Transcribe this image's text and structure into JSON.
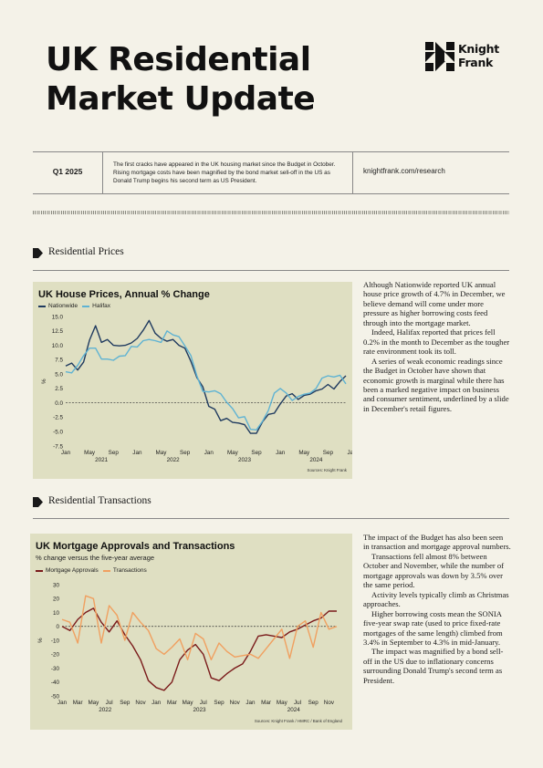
{
  "header": {
    "title_line1": "UK Residential",
    "title_line2": "Market Update",
    "logo_line1": "Knight",
    "logo_line2": "Frank"
  },
  "band": {
    "quarter": "Q1 2025",
    "intro": "The first cracks have appeared in the UK housing market since the Budget in October. Rising mortgage costs have been magnified by the bond market sell-off in the US as Donald Trump begins his second term as US President.",
    "website": "knightfrank.com/research"
  },
  "section1": {
    "heading": "Residential Prices",
    "text": [
      "Although Nationwide reported UK annual house price growth of 4.7% in December, we believe demand will come under more pressure as higher borrowing costs feed through into the mortgage market.",
      "Indeed, Halifax reported that prices fell 0.2% in the month to December as the tougher rate environment took its toll.",
      "A series of weak economic readings since the Budget in October have shown that economic growth is marginal while there has been a marked negative impact on business and consumer sentiment, underlined by a slide in December's retail figures."
    ]
  },
  "section2": {
    "heading": "Residential Transactions",
    "text": [
      "The impact of the Budget has also been seen in transaction and mortgage approval numbers.",
      "Transactions fell almost 8% between October and November, while the number of mortgage approvals was down by 3.5% over the same period.",
      "Activity levels typically climb as Christmas approaches.",
      "Higher borrowing costs mean the SONIA five-year swap rate (used to price fixed-rate mortgages of the same length) climbed from 3.4% in September to 4.3% in mid-January.",
      "The impact was magnified by a bond sell-off in the US due to inflationary concerns surrounding Donald Trump's second term as President."
    ]
  },
  "chart_data": [
    {
      "type": "line",
      "title": "UK House Prices, Annual % Change",
      "ylabel": "%",
      "ylim": [
        -7.5,
        15.0
      ],
      "yticks": [
        "15.0",
        "12.5",
        "10.0",
        "7.5",
        "5.0",
        "2.5",
        "0.0",
        "-2.5",
        "-5.0",
        "-7.5"
      ],
      "x_tick_labels": [
        "Jan",
        "May",
        "Sep",
        "Jan",
        "May",
        "Sep",
        "Jan",
        "May",
        "Sep",
        "Jan",
        "May",
        "Sep",
        "Jan"
      ],
      "x_tick_months": [
        0,
        4,
        8,
        12,
        16,
        20,
        24,
        28,
        32,
        36,
        40,
        44,
        48
      ],
      "year_labels": [
        {
          "label": "2021",
          "month": 6
        },
        {
          "label": "2022",
          "month": 18
        },
        {
          "label": "2023",
          "month": 30
        },
        {
          "label": "2024",
          "month": 42
        }
      ],
      "zero_line": "dashed",
      "legend_placement": "top-left",
      "source": "Sources: Knight Frank",
      "x_start": "Jan 2021",
      "series": [
        {
          "name": "Nationwide",
          "color": "#1f3a5f",
          "values": [
            6.4,
            6.9,
            5.7,
            7.1,
            10.9,
            13.4,
            10.5,
            11.0,
            10.0,
            9.9,
            10.0,
            10.4,
            11.2,
            12.6,
            14.3,
            12.1,
            11.2,
            10.7,
            11.0,
            10.0,
            9.5,
            7.2,
            4.4,
            2.8,
            -0.6,
            -1.1,
            -3.1,
            -2.7,
            -3.4,
            -3.5,
            -3.8,
            -5.3,
            -5.3,
            -3.3,
            -2.0,
            -1.8,
            -0.2,
            1.2,
            1.6,
            0.6,
            1.3,
            1.5,
            2.1,
            2.4,
            3.2,
            2.4,
            3.7,
            4.7
          ]
        },
        {
          "name": "Halifax",
          "color": "#5fb3d3",
          "values": [
            5.4,
            5.2,
            6.5,
            8.2,
            9.5,
            9.5,
            7.6,
            7.6,
            7.4,
            8.1,
            8.2,
            9.8,
            9.7,
            10.8,
            11.0,
            10.8,
            10.5,
            12.5,
            11.8,
            11.5,
            9.9,
            8.2,
            4.7,
            2.0,
            1.9,
            2.1,
            1.6,
            0.1,
            -1.0,
            -2.6,
            -2.4,
            -4.6,
            -4.7,
            -3.2,
            -1.3,
            1.7,
            2.5,
            1.7,
            0.4,
            1.1,
            1.5,
            1.7,
            2.5,
            4.3,
            4.7,
            4.5,
            4.8,
            3.3
          ]
        }
      ]
    },
    {
      "type": "line",
      "title": "UK Mortgage Approvals and Transactions",
      "subtitle": "% change versus the five-year average",
      "ylabel": "%",
      "ylim": [
        -50,
        30
      ],
      "yticks": [
        "30",
        "20",
        "10",
        "0",
        "-10",
        "-20",
        "-30",
        "-40",
        "-50"
      ],
      "x_tick_labels": [
        "Jan",
        "Mar",
        "May",
        "Jul",
        "Sep",
        "Nov",
        "Jan",
        "Mar",
        "May",
        "Jul",
        "Sep",
        "Nov",
        "Jan",
        "Mar",
        "May",
        "Jul",
        "Sep",
        "Nov"
      ],
      "x_tick_months": [
        0,
        2,
        4,
        6,
        8,
        10,
        12,
        14,
        16,
        18,
        20,
        22,
        24,
        26,
        28,
        30,
        32,
        34
      ],
      "year_labels": [
        {
          "label": "2022",
          "month": 5.5
        },
        {
          "label": "2023",
          "month": 17.5
        },
        {
          "label": "2024",
          "month": 29.5
        }
      ],
      "zero_line": "dashed",
      "legend_placement": "top-left",
      "source": "Sources: Knight Frank / HMRC / Bank of England",
      "x_start": "Jan 2022",
      "series": [
        {
          "name": "Mortgage Approvals",
          "color": "#7a1a1a",
          "values": [
            0,
            -3,
            5,
            10,
            13,
            3,
            -4,
            4,
            -6,
            -14,
            -24,
            -39,
            -44,
            -46,
            -40,
            -24,
            -17,
            -13,
            -20,
            -37,
            -39,
            -34,
            -30,
            -27,
            -18,
            -7,
            -6,
            -7,
            -8,
            -4,
            -2,
            1,
            4,
            6,
            11,
            11
          ]
        },
        {
          "name": "Transactions",
          "color": "#f0a060",
          "values": [
            5,
            3,
            -12,
            22,
            20,
            -12,
            15,
            8,
            -10,
            10,
            3,
            -3,
            -16,
            -20,
            -15,
            -9,
            -24,
            -5,
            -9,
            -24,
            -12,
            -18,
            -22,
            -21,
            -20,
            -23,
            -16,
            -9,
            -2,
            -23,
            0,
            4,
            -15,
            10,
            -2,
            0
          ]
        }
      ]
    }
  ]
}
